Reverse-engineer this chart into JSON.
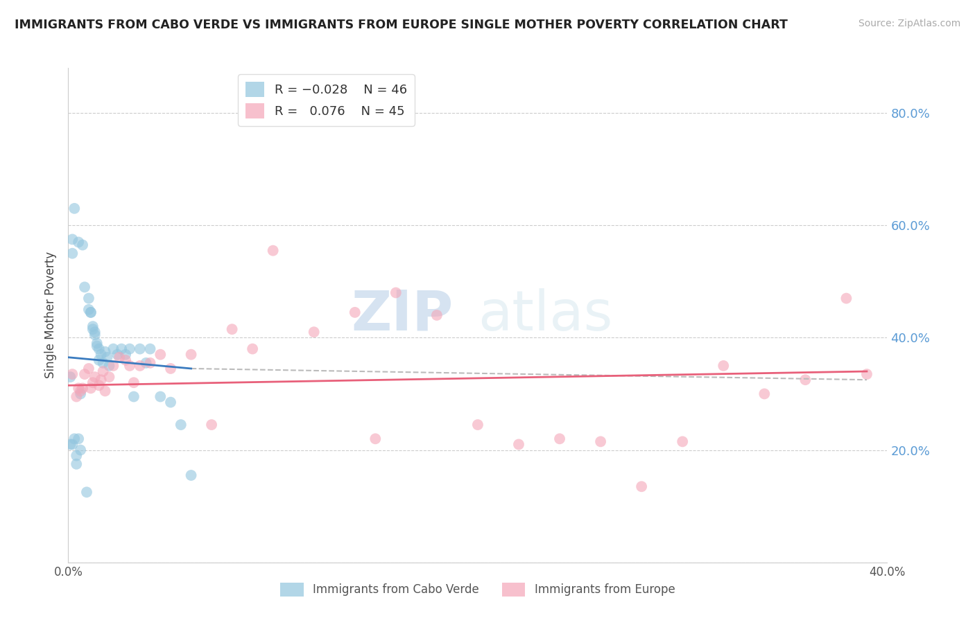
{
  "title": "IMMIGRANTS FROM CABO VERDE VS IMMIGRANTS FROM EUROPE SINGLE MOTHER POVERTY CORRELATION CHART",
  "source": "Source: ZipAtlas.com",
  "ylabel": "Single Mother Poverty",
  "y_ticks": [
    0.0,
    0.2,
    0.4,
    0.6,
    0.8
  ],
  "y_tick_labels": [
    "",
    "20.0%",
    "40.0%",
    "60.0%",
    "80.0%"
  ],
  "x_range": [
    0.0,
    0.4
  ],
  "y_range": [
    0.0,
    0.88
  ],
  "blue_color": "#92c5de",
  "pink_color": "#f4a6b8",
  "blue_line_color": "#3a7bbf",
  "pink_line_color": "#e8607a",
  "dashed_line_color": "#bbbbbb",
  "watermark_zip": "ZIP",
  "watermark_atlas": "atlas",
  "cabo_verde_x": [
    0.001,
    0.002,
    0.002,
    0.003,
    0.004,
    0.005,
    0.006,
    0.007,
    0.008,
    0.009,
    0.01,
    0.01,
    0.011,
    0.011,
    0.012,
    0.012,
    0.013,
    0.013,
    0.014,
    0.014,
    0.015,
    0.015,
    0.016,
    0.017,
    0.018,
    0.019,
    0.02,
    0.022,
    0.024,
    0.026,
    0.028,
    0.03,
    0.032,
    0.035,
    0.038,
    0.04,
    0.045,
    0.05,
    0.055,
    0.06,
    0.001,
    0.002,
    0.003,
    0.004,
    0.005,
    0.006
  ],
  "cabo_verde_y": [
    0.33,
    0.575,
    0.55,
    0.22,
    0.19,
    0.57,
    0.3,
    0.565,
    0.49,
    0.125,
    0.47,
    0.45,
    0.445,
    0.445,
    0.42,
    0.415,
    0.41,
    0.405,
    0.39,
    0.385,
    0.38,
    0.36,
    0.37,
    0.355,
    0.375,
    0.365,
    0.35,
    0.38,
    0.37,
    0.38,
    0.37,
    0.38,
    0.295,
    0.38,
    0.355,
    0.38,
    0.295,
    0.285,
    0.245,
    0.155,
    0.21,
    0.21,
    0.63,
    0.175,
    0.22,
    0.2
  ],
  "europe_x": [
    0.002,
    0.004,
    0.005,
    0.006,
    0.007,
    0.008,
    0.01,
    0.011,
    0.012,
    0.013,
    0.015,
    0.016,
    0.017,
    0.018,
    0.02,
    0.022,
    0.025,
    0.028,
    0.03,
    0.032,
    0.035,
    0.04,
    0.045,
    0.05,
    0.06,
    0.07,
    0.08,
    0.09,
    0.1,
    0.12,
    0.14,
    0.16,
    0.18,
    0.2,
    0.22,
    0.24,
    0.26,
    0.28,
    0.3,
    0.32,
    0.34,
    0.36,
    0.38,
    0.39,
    0.15
  ],
  "europe_y": [
    0.335,
    0.295,
    0.31,
    0.305,
    0.31,
    0.335,
    0.345,
    0.31,
    0.32,
    0.33,
    0.315,
    0.325,
    0.34,
    0.305,
    0.33,
    0.35,
    0.365,
    0.36,
    0.35,
    0.32,
    0.35,
    0.355,
    0.37,
    0.345,
    0.37,
    0.245,
    0.415,
    0.38,
    0.555,
    0.41,
    0.445,
    0.48,
    0.44,
    0.245,
    0.21,
    0.22,
    0.215,
    0.135,
    0.215,
    0.35,
    0.3,
    0.325,
    0.47,
    0.335,
    0.22
  ],
  "blue_trend_x0": 0.0,
  "blue_trend_y0": 0.365,
  "blue_trend_x1": 0.06,
  "blue_trend_y1": 0.345,
  "pink_trend_x0": 0.0,
  "pink_trend_y0": 0.315,
  "pink_trend_x1": 0.39,
  "pink_trend_y1": 0.34,
  "dash_trend_x0": 0.06,
  "dash_trend_y0": 0.345,
  "dash_trend_x1": 0.39,
  "dash_trend_y1": 0.325
}
